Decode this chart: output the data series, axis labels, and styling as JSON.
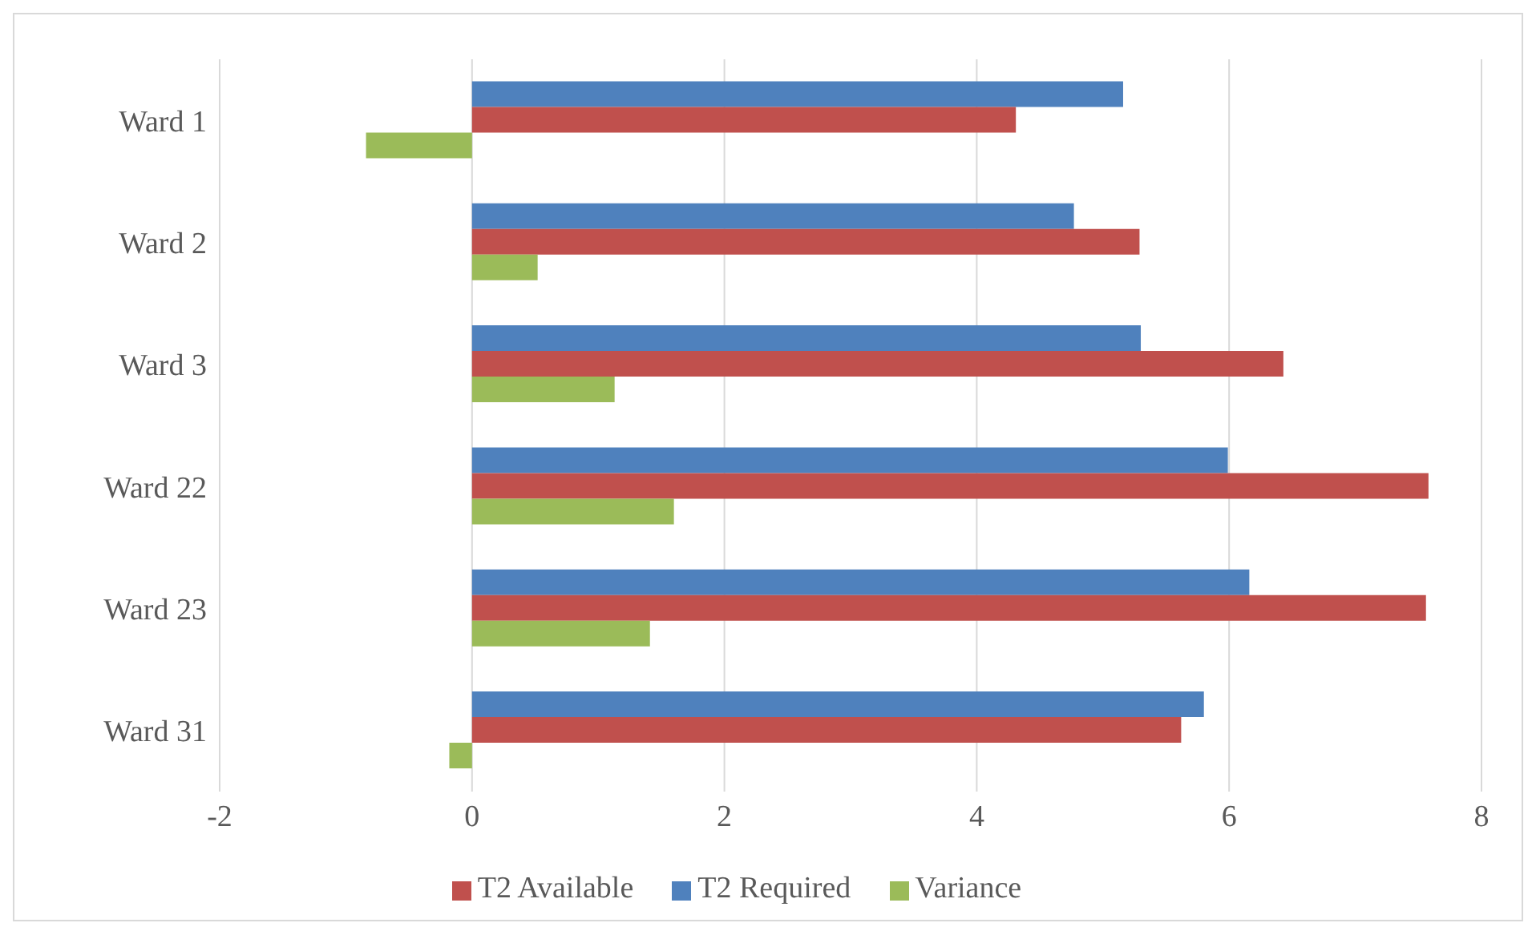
{
  "chart_data": {
    "type": "bar",
    "orientation": "horizontal",
    "categories": [
      "Ward 1",
      "Ward 2",
      "Ward 3",
      "Ward 22",
      "Ward 23",
      "Ward 31"
    ],
    "series": [
      {
        "name": "T2 Required",
        "color": "#4f81bd",
        "values": [
          5.16,
          4.77,
          5.3,
          5.99,
          6.16,
          5.8
        ]
      },
      {
        "name": "T2 Available",
        "color": "#c0504d",
        "values": [
          4.31,
          5.29,
          6.43,
          7.58,
          7.56,
          5.62
        ]
      },
      {
        "name": "Variance",
        "color": "#9bbb59",
        "values": [
          -0.84,
          0.52,
          1.13,
          1.6,
          1.41,
          -0.18
        ]
      }
    ],
    "xlim": [
      -2,
      8
    ],
    "xticks": [
      -2,
      0,
      2,
      4,
      6,
      8
    ],
    "grid": "x",
    "legend": "bottom"
  }
}
